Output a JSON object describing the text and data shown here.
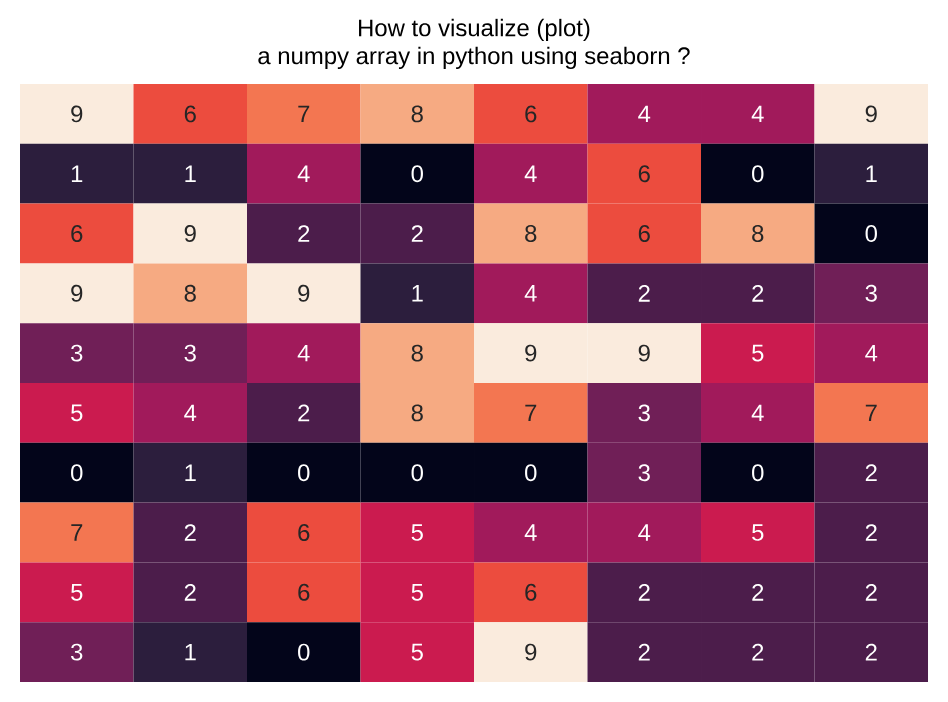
{
  "chart_data": {
    "type": "heatmap",
    "title": "How to visualize (plot)\na numpy array in python using seaborn ?",
    "categories": [
      null,
      null,
      null,
      null,
      null,
      null,
      null,
      null
    ],
    "y_categories": [
      null,
      null,
      null,
      null,
      null,
      null,
      null,
      null,
      null,
      null
    ],
    "cells": [
      [
        9,
        6,
        7,
        8,
        6,
        4,
        4,
        9
      ],
      [
        1,
        1,
        4,
        0,
        4,
        6,
        0,
        1
      ],
      [
        6,
        9,
        2,
        2,
        8,
        6,
        8,
        0
      ],
      [
        9,
        8,
        9,
        1,
        4,
        2,
        2,
        3
      ],
      [
        3,
        3,
        4,
        8,
        9,
        9,
        5,
        4
      ],
      [
        5,
        4,
        2,
        8,
        7,
        3,
        4,
        7
      ],
      [
        0,
        1,
        0,
        0,
        0,
        3,
        0,
        2
      ],
      [
        7,
        2,
        6,
        5,
        4,
        4,
        5,
        2
      ],
      [
        5,
        2,
        6,
        5,
        6,
        2,
        2,
        2
      ],
      [
        3,
        1,
        0,
        5,
        9,
        2,
        2,
        2
      ]
    ],
    "data_labels": true
  }
}
